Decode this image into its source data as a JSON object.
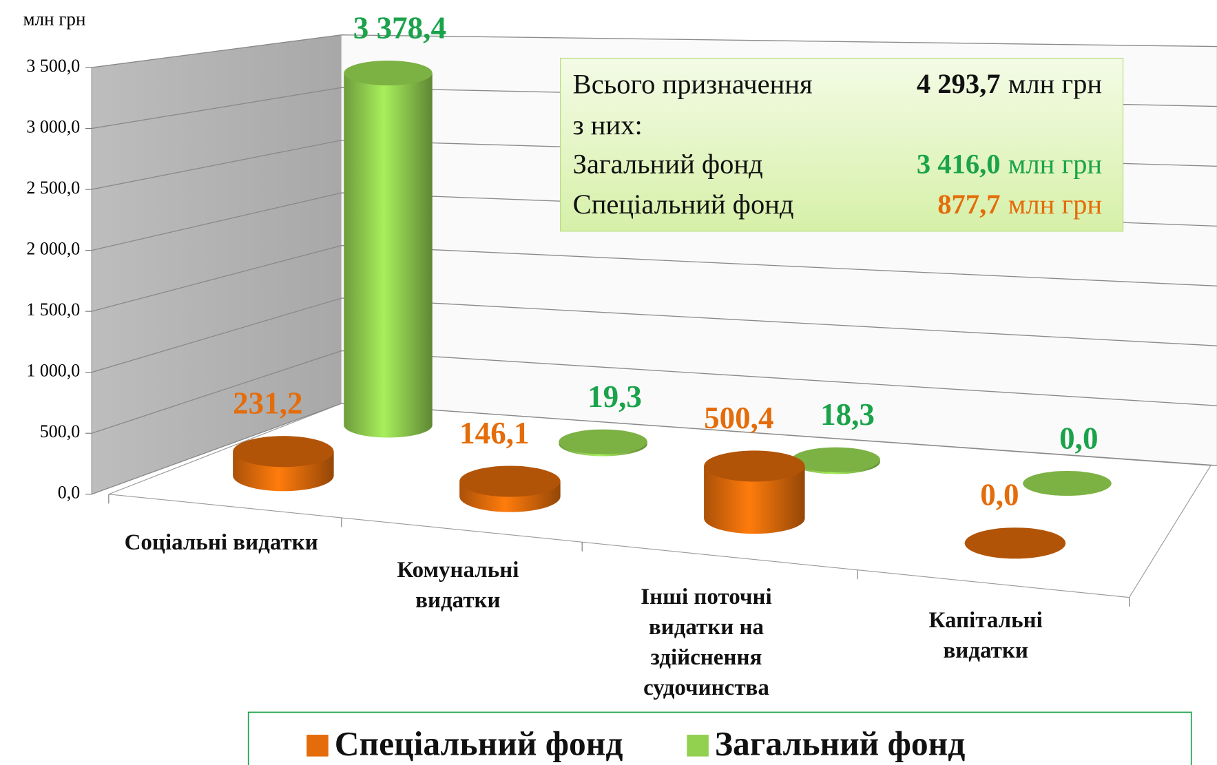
{
  "chart_data": {
    "type": "bar3d",
    "y_axis_label": "млн грн",
    "categories": [
      "Соціальні видатки",
      "Комунальні видатки",
      "Інші поточні видатки на здійснення судочинства",
      "Капітальні видатки"
    ],
    "series": [
      {
        "name": "Спеціальний фонд",
        "color": "#e46c0a",
        "values": [
          231.2,
          146.1,
          500.4,
          0.0
        ],
        "value_labels": [
          "231,2",
          "146,1",
          "500,4",
          "0,0"
        ]
      },
      {
        "name": "Загальний фонд",
        "color": "#92d050",
        "values": [
          3378.4,
          19.3,
          18.3,
          0.0
        ],
        "value_labels": [
          "3 378,4",
          "19,3",
          "18,3",
          "0,0"
        ]
      }
    ],
    "ylim": [
      0,
      3500
    ],
    "yticks": [
      {
        "value": 0,
        "label": "0,0"
      },
      {
        "value": 500,
        "label": "500,0"
      },
      {
        "value": 1000,
        "label": "1 000,0"
      },
      {
        "value": 1500,
        "label": "1 500,0"
      },
      {
        "value": 2000,
        "label": "2 000,0"
      },
      {
        "value": 2500,
        "label": "2 500,0"
      },
      {
        "value": 3000,
        "label": "3 000,0"
      },
      {
        "value": 3500,
        "label": "3 500,0"
      }
    ],
    "grid": true,
    "legend": "bottom",
    "annotation": {
      "lines": [
        {
          "text": "Всього призначення",
          "value": "4 293,7",
          "unit": "млн грн",
          "color": "#111111"
        },
        {
          "text": "з них:"
        },
        {
          "text": "Загальний фонд",
          "value": "3 416,0",
          "unit": "млн грн",
          "color": "#1aa34a"
        },
        {
          "text": "Спеціальний фонд",
          "value": "877,7",
          "unit": "млн грн",
          "color": "#e46c0a"
        }
      ]
    }
  }
}
